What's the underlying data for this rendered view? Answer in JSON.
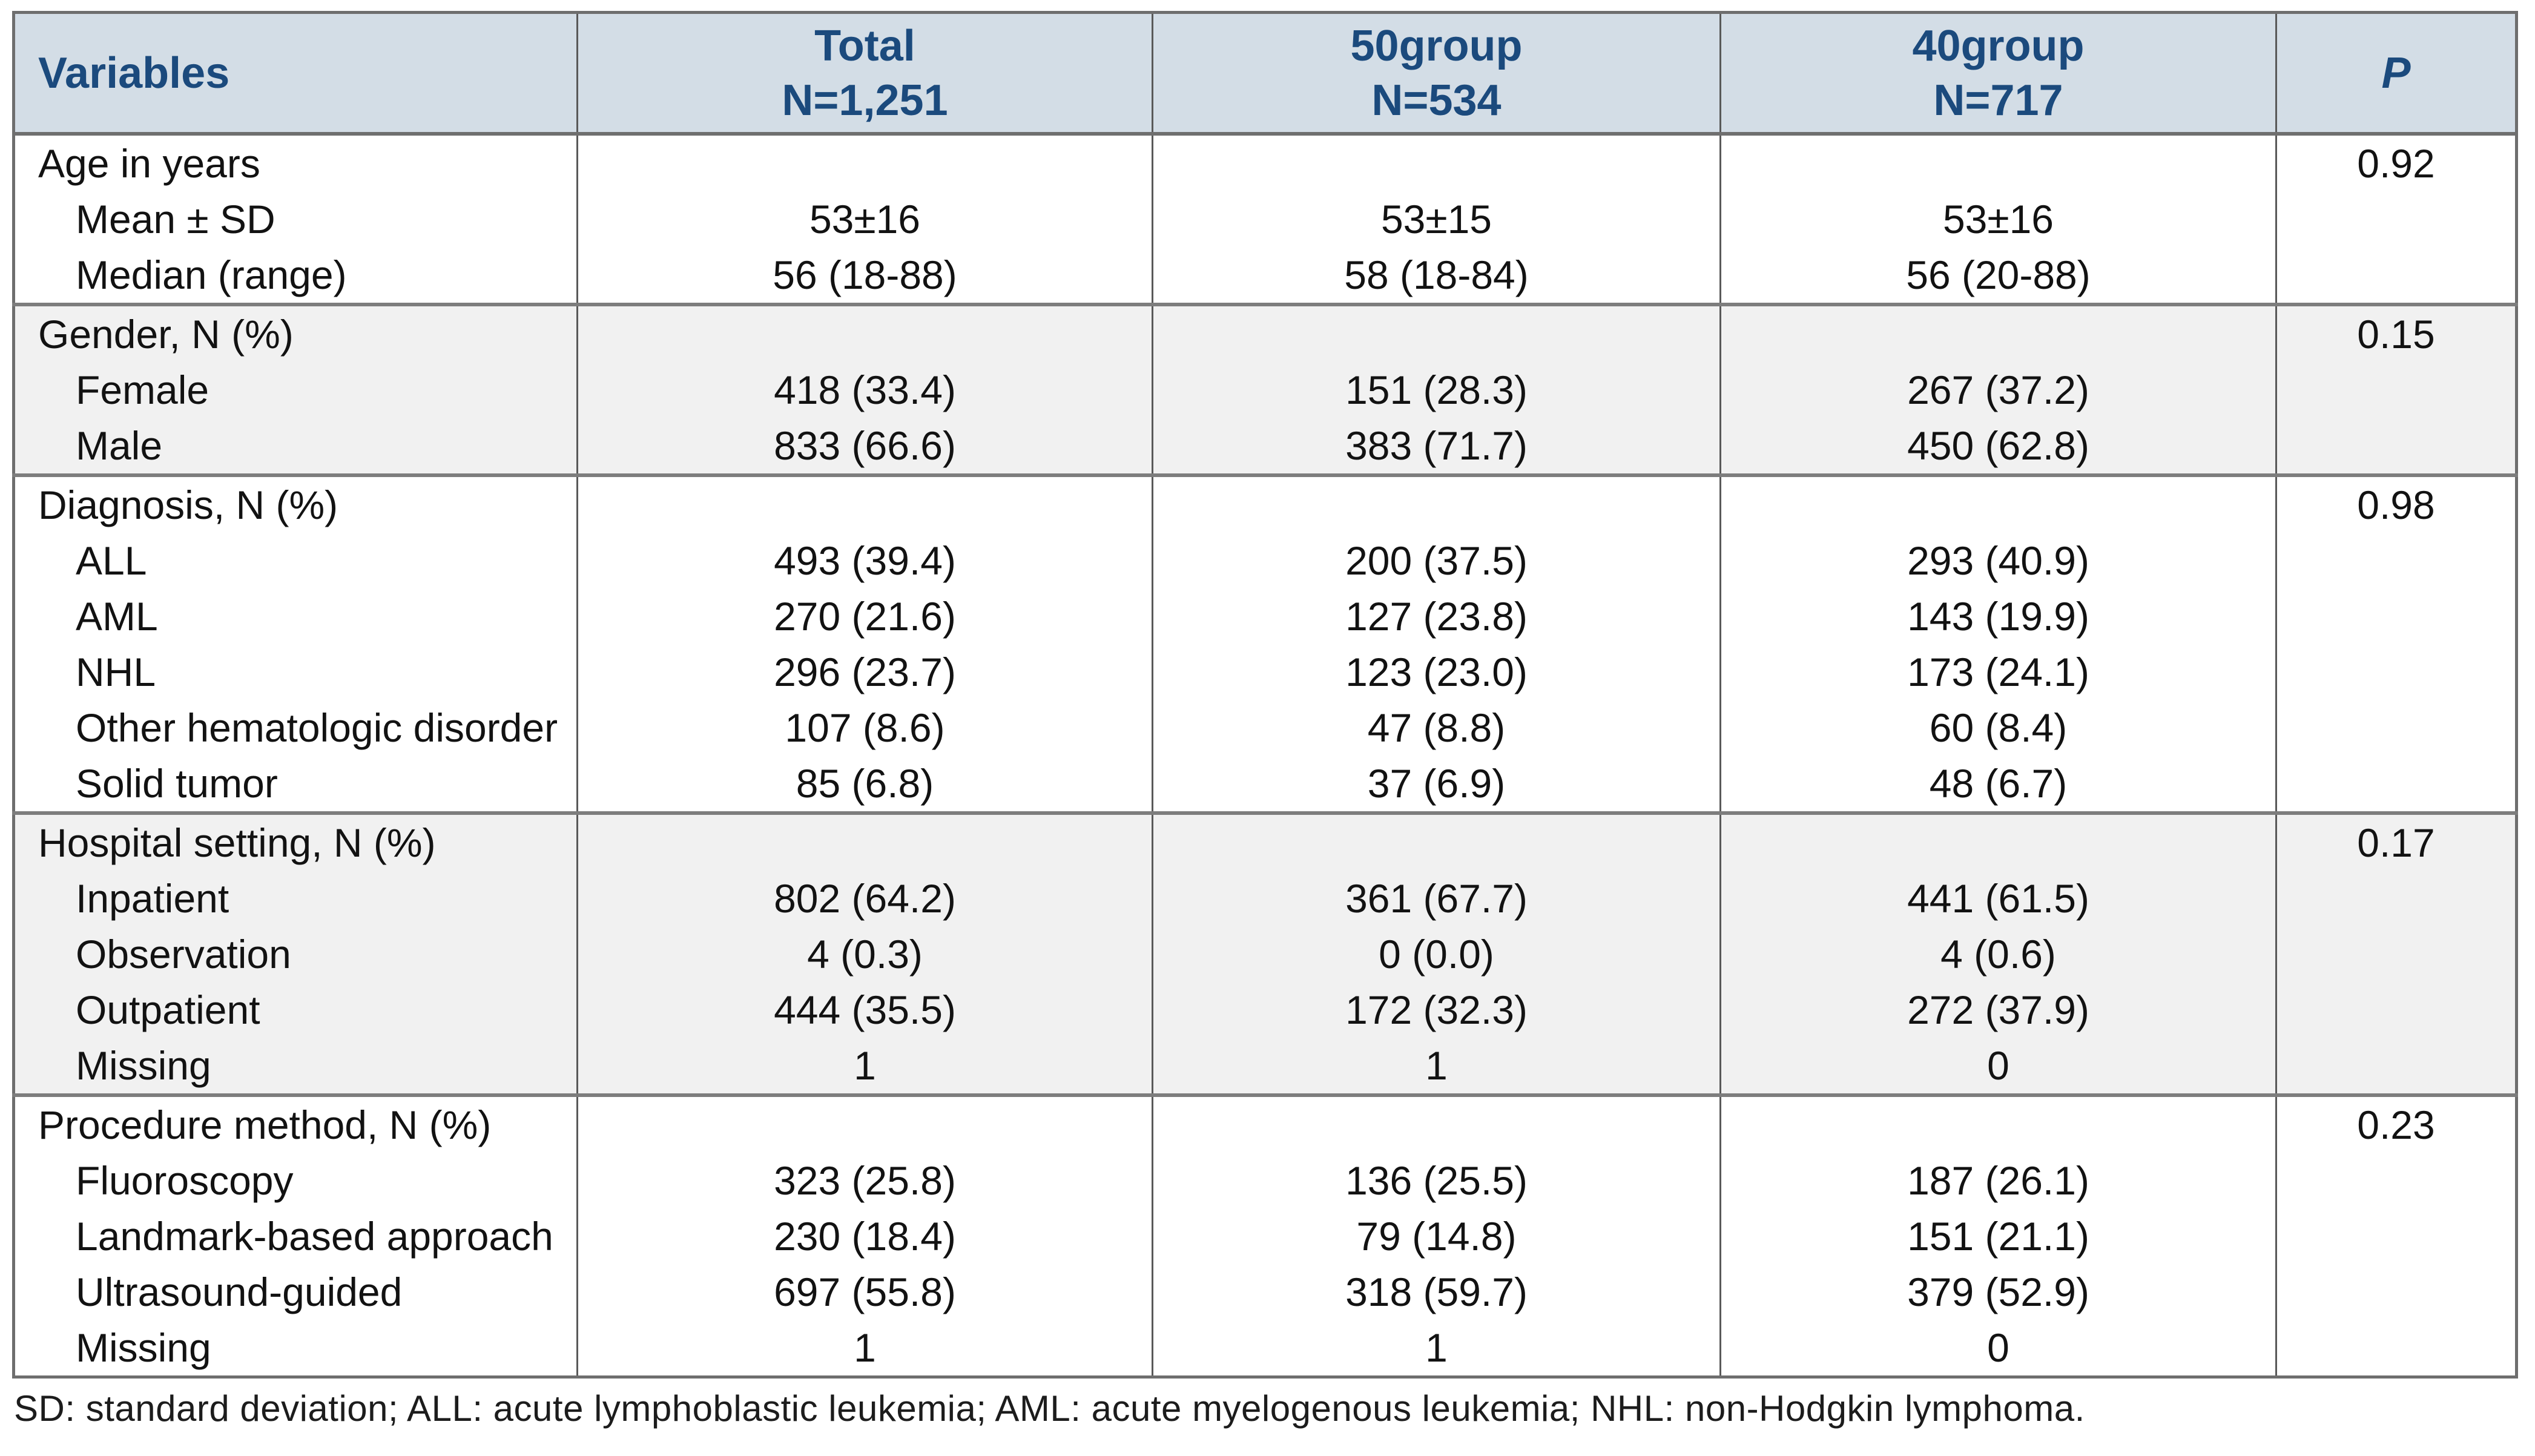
{
  "table": {
    "header": {
      "variables": "Variables",
      "total_line1": "Total",
      "total_line2": "N=1,251",
      "g50_line1": "50group",
      "g50_line2": "N=534",
      "g40_line1": "40group",
      "g40_line2": "N=717",
      "p": "P"
    },
    "sections": [
      {
        "label": "Age in years",
        "p": "0.92",
        "rows": [
          {
            "label": "Mean ± SD",
            "total": "53±16",
            "g50": "53±15",
            "g40": "53±16"
          },
          {
            "label": "Median (range)",
            "total": "56 (18-88)",
            "g50": "58 (18-84)",
            "g40": "56 (20-88)"
          }
        ]
      },
      {
        "label": "Gender, N (%)",
        "p": "0.15",
        "rows": [
          {
            "label": "Female",
            "total": "418 (33.4)",
            "g50": "151 (28.3)",
            "g40": "267 (37.2)"
          },
          {
            "label": "Male",
            "total": "833 (66.6)",
            "g50": "383 (71.7)",
            "g40": "450 (62.8)"
          }
        ]
      },
      {
        "label": "Diagnosis, N (%)",
        "p": "0.98",
        "rows": [
          {
            "label": "ALL",
            "total": "493 (39.4)",
            "g50": "200 (37.5)",
            "g40": "293 (40.9)"
          },
          {
            "label": "AML",
            "total": "270 (21.6)",
            "g50": "127 (23.8)",
            "g40": "143 (19.9)"
          },
          {
            "label": "NHL",
            "total": "296 (23.7)",
            "g50": "123 (23.0)",
            "g40": "173 (24.1)"
          },
          {
            "label": "Other hematologic disorder",
            "total": "107 (8.6)",
            "g50": "47 (8.8)",
            "g40": "60 (8.4)"
          },
          {
            "label": "Solid tumor",
            "total": "85 (6.8)",
            "g50": "37 (6.9)",
            "g40": "48 (6.7)"
          }
        ]
      },
      {
        "label": "Hospital setting, N (%)",
        "p": "0.17",
        "rows": [
          {
            "label": "Inpatient",
            "total": "802 (64.2)",
            "g50": "361 (67.7)",
            "g40": "441 (61.5)"
          },
          {
            "label": "Observation",
            "total": "4 (0.3)",
            "g50": "0 (0.0)",
            "g40": "4 (0.6)"
          },
          {
            "label": "Outpatient",
            "total": "444 (35.5)",
            "g50": "172 (32.3)",
            "g40": "272 (37.9)"
          },
          {
            "label": "Missing",
            "total": "1",
            "g50": "1",
            "g40": "0"
          }
        ]
      },
      {
        "label": "Procedure method, N (%)",
        "p": "0.23",
        "rows": [
          {
            "label": "Fluoroscopy",
            "total": "323 (25.8)",
            "g50": "136 (25.5)",
            "g40": "187 (26.1)"
          },
          {
            "label": "Landmark-based approach",
            "total": "230 (18.4)",
            "g50": "79 (14.8)",
            "g40": "151 (21.1)"
          },
          {
            "label": "Ultrasound-guided",
            "total": "697 (55.8)",
            "g50": "318 (59.7)",
            "g40": "379 (52.9)"
          },
          {
            "label": "Missing",
            "total": "1",
            "g50": "1",
            "g40": "0"
          }
        ]
      }
    ]
  },
  "footnote": "SD: standard deviation; ALL: acute lymphoblastic leukemia; AML: acute myelogenous leukemia; NHL: non-Hodgkin lymphoma.",
  "colors": {
    "header_bg": "#d3dde6",
    "header_text": "#1b4a7d",
    "stripe_bg": "#f1f1f1",
    "border": "#595959",
    "section_divider": "#7d7d7d"
  }
}
